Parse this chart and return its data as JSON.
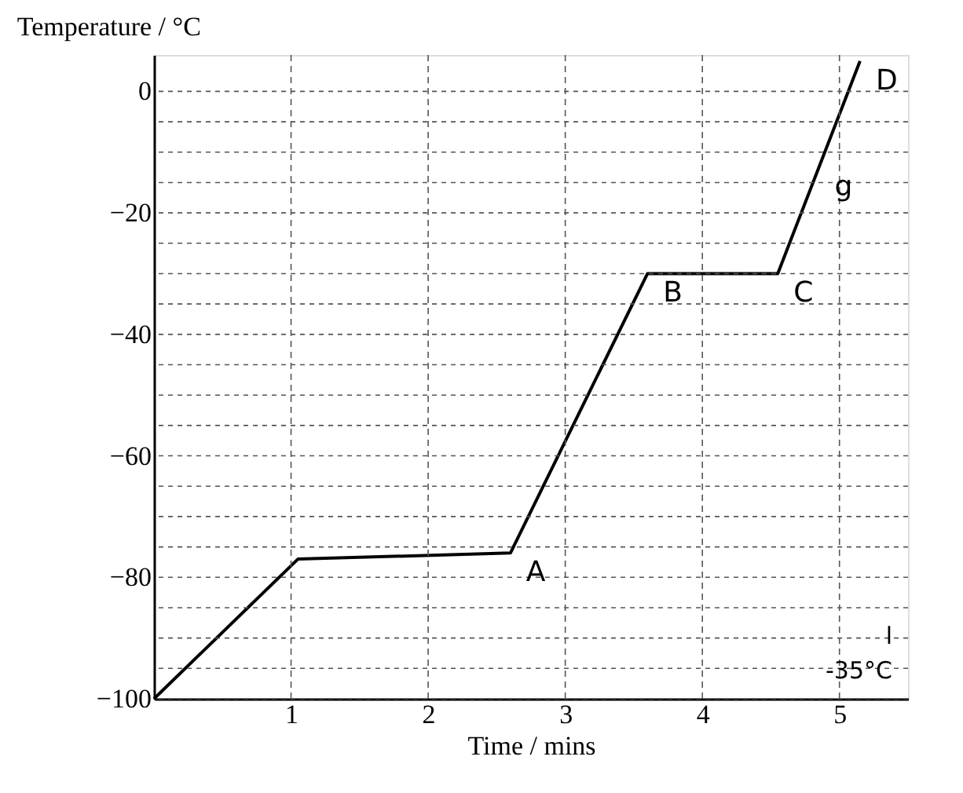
{
  "chart_data": {
    "type": "line",
    "xlabel": "Time / mins",
    "ylabel": "Temperature / °C",
    "x": [
      0,
      1.05,
      2.6,
      3.6,
      4.55,
      5.15
    ],
    "series": [
      {
        "color": "#000000",
        "values": [
          -100,
          -77,
          -76,
          -30,
          -30,
          5
        ]
      }
    ],
    "xlim": [
      0,
      5.5
    ],
    "ylim": [
      -100,
      6
    ],
    "xticks": [
      1,
      2,
      3,
      4,
      5
    ],
    "yticks": [
      -100,
      {
        "value": -95,
        "label": null
      },
      {
        "value": -90,
        "label": null
      },
      {
        "value": -85,
        "label": null
      },
      -80,
      {
        "value": -75,
        "label": null
      },
      {
        "value": -70,
        "label": null
      },
      {
        "value": -65,
        "label": null
      },
      -60,
      {
        "value": -55,
        "label": null
      },
      {
        "value": -50,
        "label": null
      },
      {
        "value": -45,
        "label": null
      },
      -40,
      {
        "value": -35,
        "label": null
      },
      {
        "value": -30,
        "label": null
      },
      {
        "value": -25,
        "label": null
      },
      -20,
      {
        "value": -15,
        "label": null
      },
      {
        "value": -10,
        "label": null
      },
      {
        "value": -5,
        "label": null
      },
      0
    ],
    "grid": true,
    "marker": "none",
    "line_style": "solid",
    "annotations": [
      {
        "text": "A",
        "x": 2.6,
        "y": -76
      },
      {
        "text": "B",
        "x": 3.6,
        "y": -30
      },
      {
        "text": "C",
        "x": 4.55,
        "y": -30
      },
      {
        "text": "D",
        "x": 5.15,
        "y": 5
      },
      "l",
      {
        "text": "g",
        "x": 4.85,
        "y": -12.5
      },
      "-35°C"
    ]
  }
}
